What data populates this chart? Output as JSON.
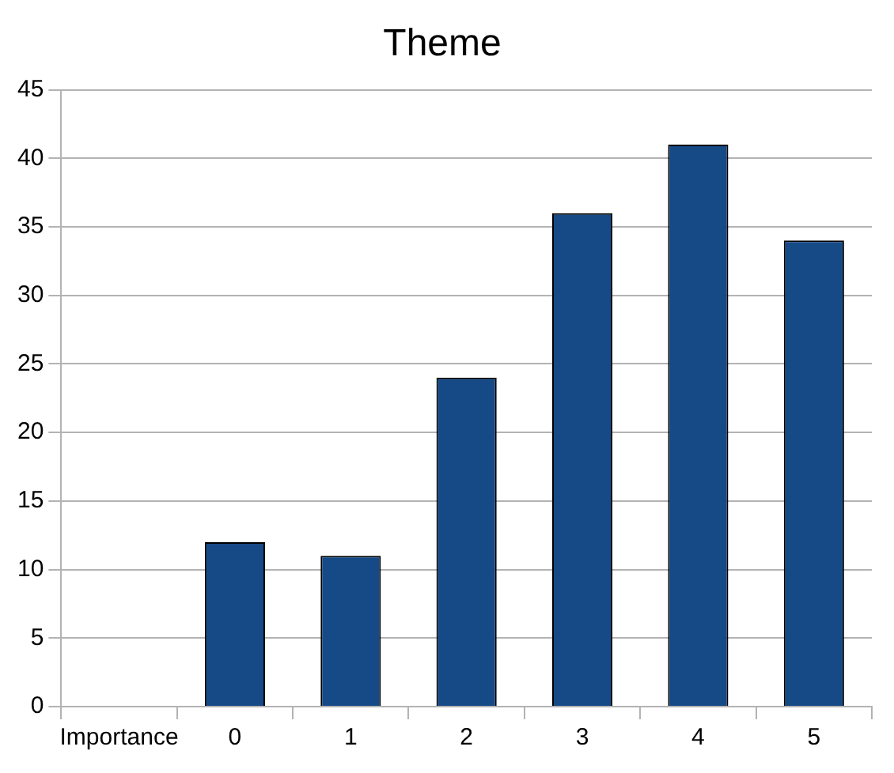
{
  "chart_data": {
    "type": "bar",
    "title": "Theme",
    "categories": [
      "Importance",
      "0",
      "1",
      "2",
      "3",
      "4",
      "5"
    ],
    "values": [
      null,
      12,
      11,
      24,
      36,
      41,
      34
    ],
    "color": "#164a86",
    "ylim": [
      0,
      45
    ],
    "yticks": [
      0,
      5,
      10,
      15,
      20,
      25,
      30,
      35,
      40,
      45
    ],
    "grid": "y",
    "legend": false
  }
}
